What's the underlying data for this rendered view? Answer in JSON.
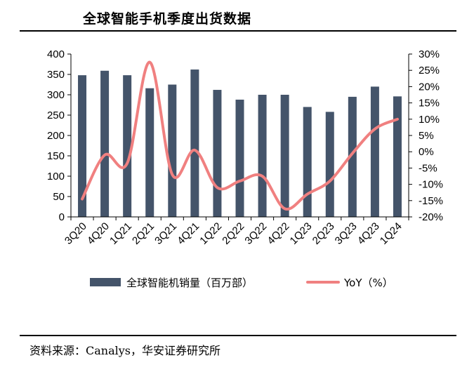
{
  "chart_data": {
    "type": "bar",
    "title": "全球智能手机季度出货数据",
    "categories": [
      "3Q20",
      "4Q20",
      "1Q21",
      "2Q21",
      "3Q21",
      "4Q21",
      "1Q22",
      "2Q22",
      "3Q22",
      "4Q22",
      "1Q23",
      "2Q23",
      "3Q23",
      "4Q23",
      "1Q24"
    ],
    "series": [
      {
        "name": "全球智能机销量（百万部）",
        "type": "bar",
        "axis": "left",
        "color": "#44546a",
        "values": [
          348,
          359,
          348,
          316,
          325,
          362,
          312,
          288,
          300,
          300,
          270,
          258,
          295,
          320,
          296
        ]
      },
      {
        "name": "YoY（%）",
        "type": "line",
        "axis": "right",
        "color": "#f08080",
        "values": [
          -14.5,
          -1,
          -3.5,
          27.5,
          -7,
          0.5,
          -11,
          -9,
          -7.5,
          -17.5,
          -13,
          -9,
          -0.5,
          7,
          10
        ]
      }
    ],
    "y_left": {
      "min": 0,
      "max": 400,
      "step": 50,
      "ticks": [
        "0",
        "50",
        "100",
        "150",
        "200",
        "250",
        "300",
        "350",
        "400"
      ]
    },
    "y_right": {
      "min": -20,
      "max": 30,
      "step": 5,
      "ticks": [
        "-20%",
        "-15%",
        "-10%",
        "-5%",
        "0%",
        "5%",
        "10%",
        "15%",
        "20%",
        "25%",
        "30%"
      ]
    },
    "grid": false,
    "legend_position": "bottom"
  },
  "source": "资料来源：Canalys，华安证券研究所"
}
